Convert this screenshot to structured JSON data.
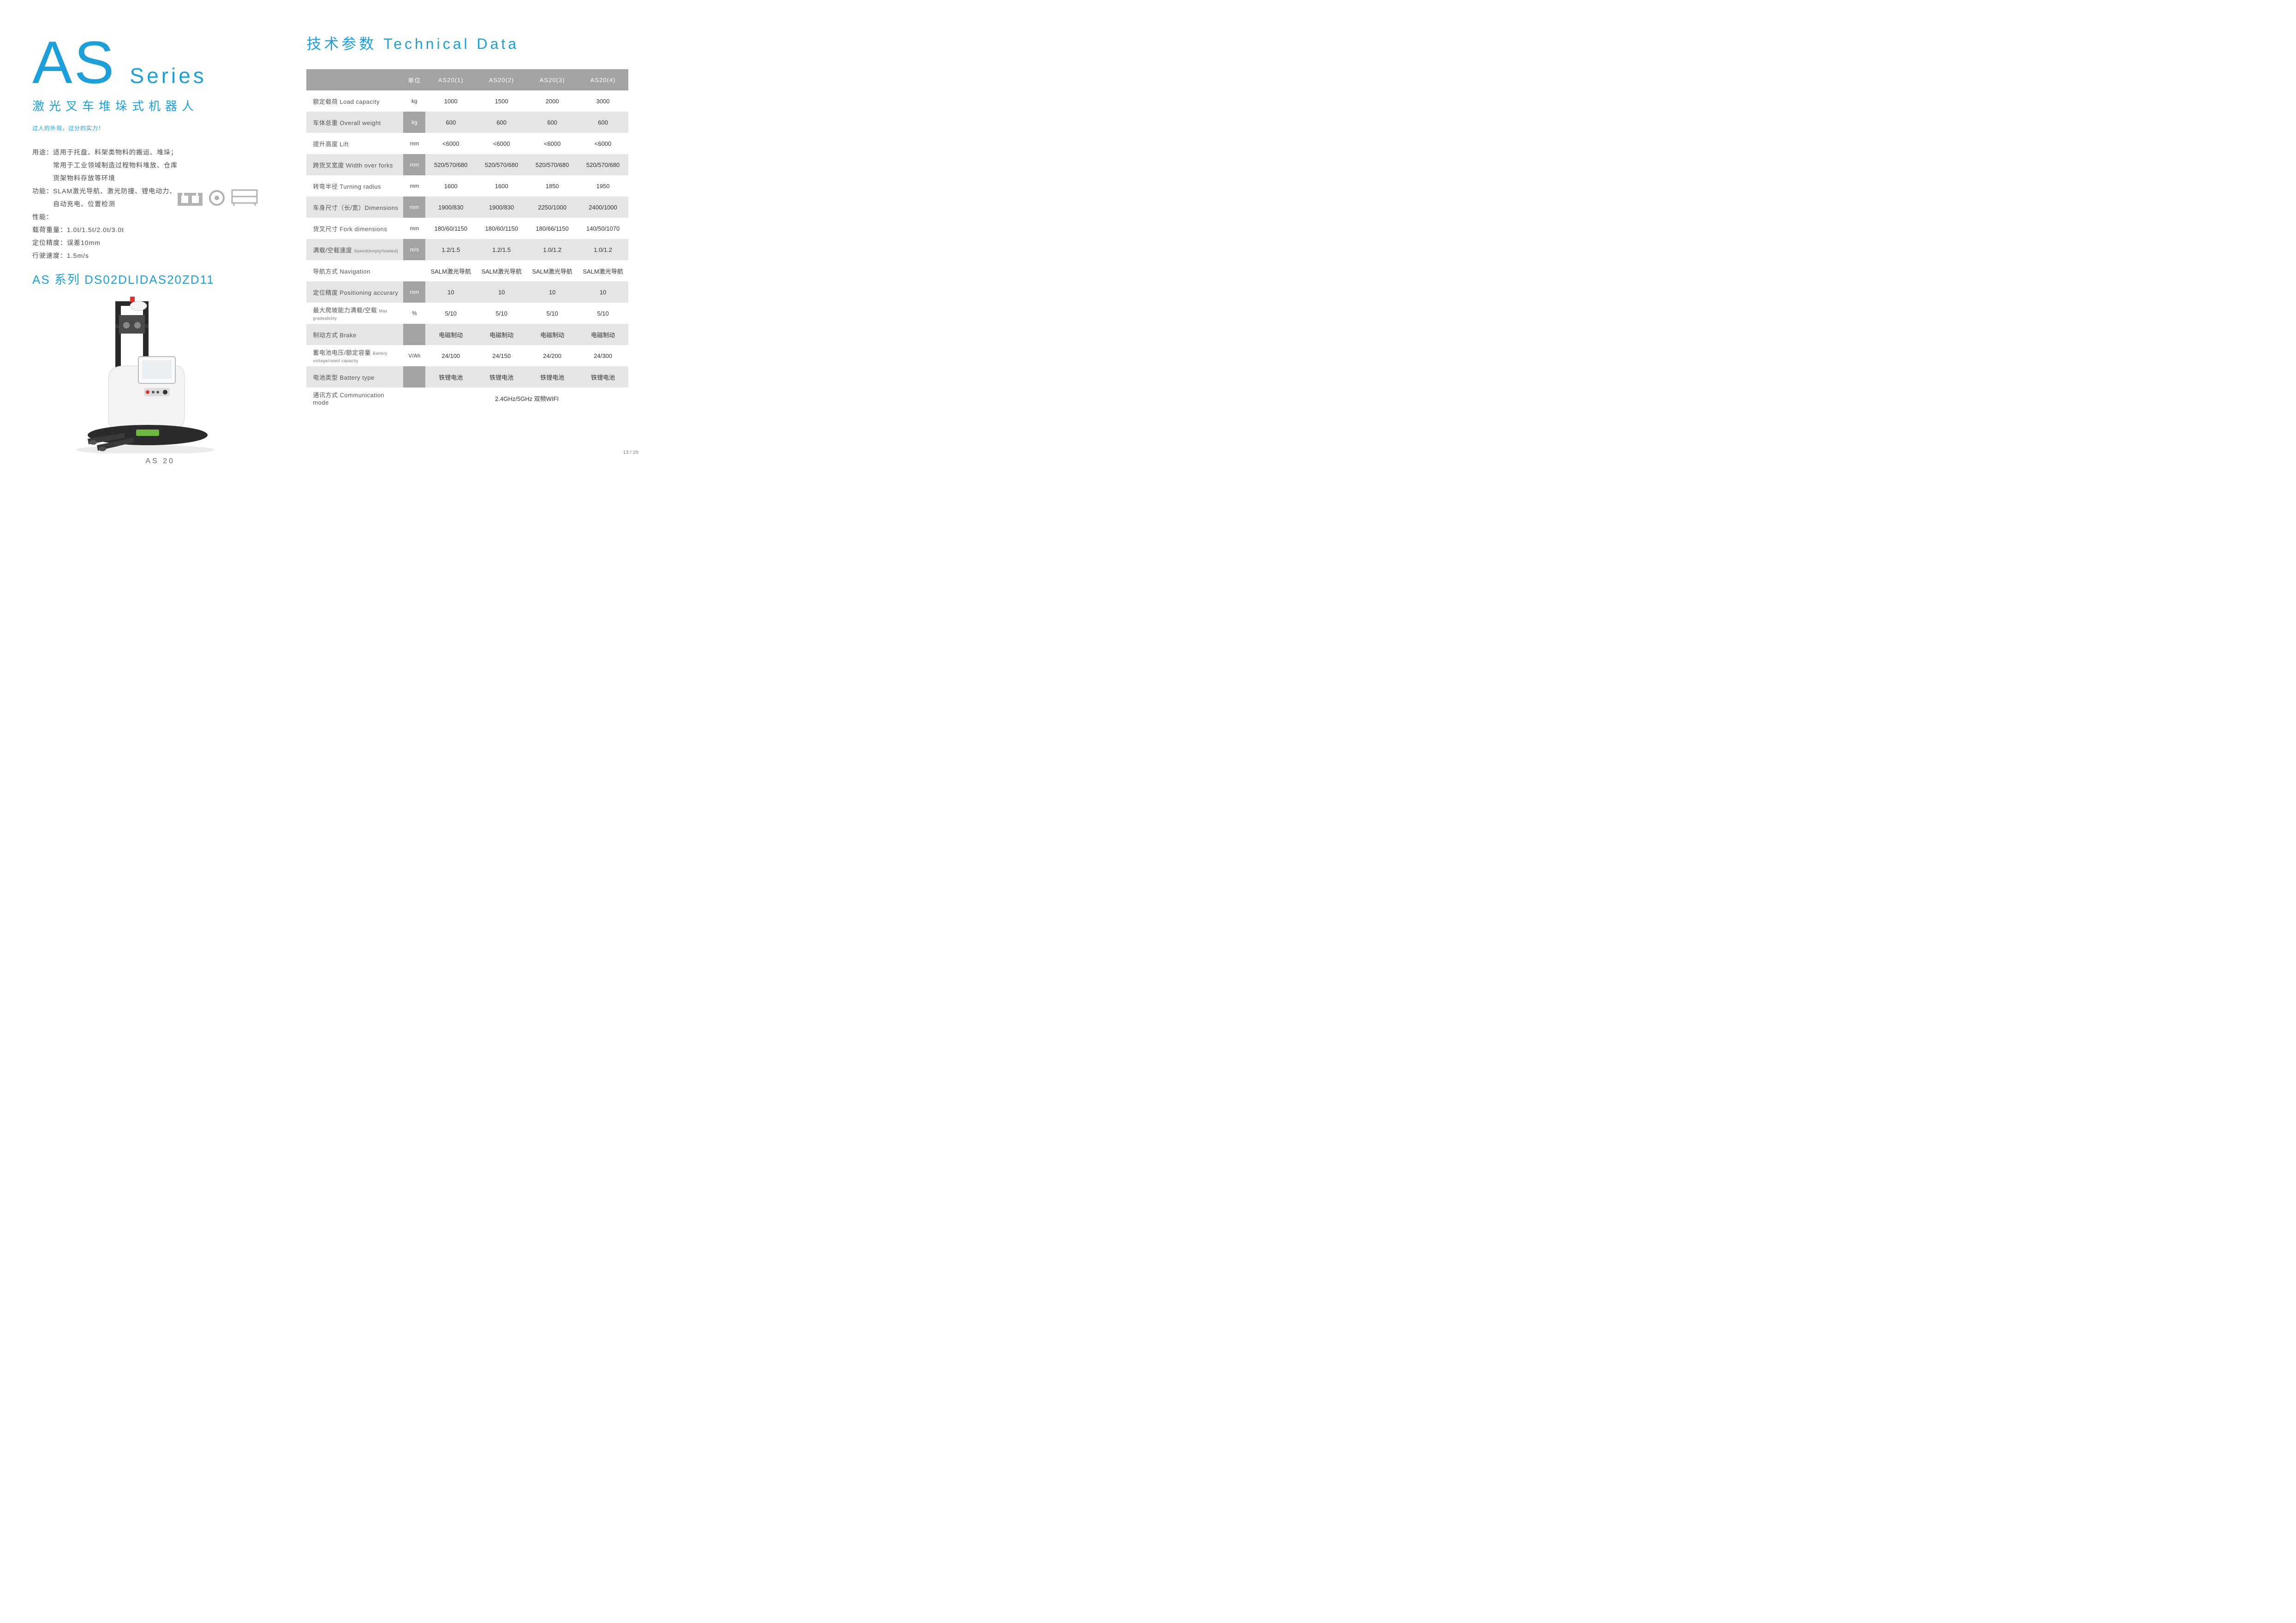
{
  "colors": {
    "accent": "#1e9fd8",
    "header_bg": "#a3a3a3",
    "alt_row_bg": "#e5e5e5",
    "text": "#4a4a4a",
    "icon_gray": "#b2b2b2"
  },
  "left": {
    "title_main": "AS",
    "title_sub": "Series",
    "subtitle_cn": "激光叉车堆垛式机器人",
    "tagline": "过人的外观，过分的实力！",
    "desc_lines": [
      "用途：适用于托盘、料架类物料的搬运、堆垛；",
      "　　　常用于工业领域制造过程物料堆放、仓库",
      "　　　货架物料存放等环境",
      "功能：SLAM激光导航、激光防撞、锂电动力、",
      "　　　自动充电、位置检测",
      "性能：",
      "载荷重量：1.0t/1.5t/2.0t/3.0t",
      "定位精度：误差10mm",
      "行驶速度：1.5m/s"
    ],
    "model_code": "AS 系列 DS02DLIDAS20ZD11",
    "caption": "AS 20"
  },
  "right": {
    "title": "技术参数 Technical Data",
    "headers": [
      "",
      "单位",
      "AS20(1)",
      "AS20(2)",
      "AS20(3)",
      "AS20(4)"
    ],
    "rows": [
      {
        "label": "额定载荷 Load capacity",
        "unit": "kg",
        "vals": [
          "1000",
          "1500",
          "2000",
          "3000"
        ]
      },
      {
        "label": "车体总重 Overall weight",
        "unit": "kg",
        "vals": [
          "600",
          "600",
          "600",
          "600"
        ]
      },
      {
        "label": "提升高度 Lift",
        "unit": "mm",
        "vals": [
          "<6000",
          "<6000",
          "<6000",
          "<6000"
        ]
      },
      {
        "label": "跨货叉宽度 Width over forks",
        "unit": "mm",
        "vals": [
          "520/570/680",
          "520/570/680",
          "520/570/680",
          "520/570/680"
        ]
      },
      {
        "label": "转弯半径 Turning radius",
        "unit": "mm",
        "vals": [
          "1600",
          "1600",
          "1850",
          "1950"
        ]
      },
      {
        "label": "车身尺寸（长/宽）Dimensions",
        "unit": "mm",
        "vals": [
          "1900/830",
          "1900/830",
          "2250/1000",
          "2400/1000"
        ]
      },
      {
        "label": "货叉尺寸 Fork dimensions",
        "unit": "mm",
        "vals": [
          "180/60/1150",
          "180/60/1150",
          "180/66/1150",
          "140/50/1070"
        ]
      },
      {
        "label": "满载/空载速度 ",
        "small": "Speed(empty/loaded)",
        "unit": "m/s",
        "vals": [
          "1.2/1.5",
          "1.2/1.5",
          "1.0/1.2",
          "1.0/1.2"
        ]
      },
      {
        "label": "导航方式 Navigation",
        "unit": "",
        "vals": [
          "SALM激光导航",
          "SALM激光导航",
          "SALM激光导航",
          "SALM激光导航"
        ]
      },
      {
        "label": "定位精度 Positioning accurary",
        "unit": "mm",
        "vals": [
          "10",
          "10",
          "10",
          "10"
        ]
      },
      {
        "label": "最大爬坡能力满载/空载 ",
        "small": "Max gradeability",
        "unit": "%",
        "vals": [
          "5/10",
          "5/10",
          "5/10",
          "5/10"
        ]
      },
      {
        "label": "制动方式 Brake",
        "unit": "",
        "vals": [
          "电磁制动",
          "电磁制动",
          "电磁制动",
          "电磁制动"
        ]
      },
      {
        "label": "蓄电池电压/额定容量 ",
        "small": "Battery voltage/rated capacity",
        "unit": "V/Ah",
        "vals": [
          "24/100",
          "24/150",
          "24/200",
          "24/300"
        ]
      },
      {
        "label": "电池类型 Battery type",
        "unit": "",
        "vals": [
          "铁锂电池",
          "铁锂电池",
          "铁锂电池",
          "铁锂电池"
        ]
      }
    ],
    "comm_row": {
      "label": "通讯方式 Communication mode",
      "value": "2.4GHz/5GHz 双频WIFI"
    }
  },
  "page_num": "13 / 29"
}
